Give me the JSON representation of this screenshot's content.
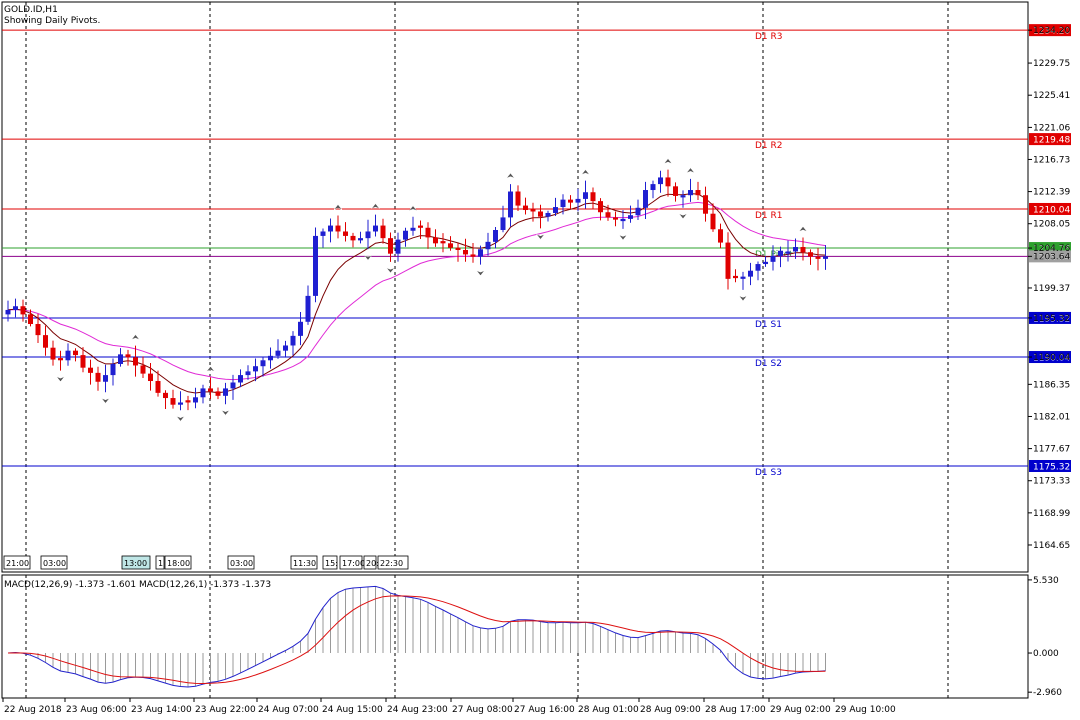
{
  "header": {
    "symbol": "GOLD.ID,H1",
    "subtitle": "Showing Daily Pivots."
  },
  "colors": {
    "bull": "#1f1fd1",
    "bear": "#e00000",
    "ma_fast": "#7a0000",
    "ma_slow": "#e02ad6",
    "macd_hist": "#9a9a9a",
    "macd_line": "#2222cc",
    "macd_signal": "#dd1111",
    "resistance": "#e00000",
    "support": "#0000cc",
    "pivot": "#2ea02e",
    "price_line": "#8b008b"
  },
  "chart_data": [
    {
      "type": "candlestick",
      "title": "GOLD.ID,H1",
      "ylim": [
        1161.0,
        1238.0
      ],
      "y_ticks": [
        "1234.20",
        "1229.75",
        "1225.41",
        "1221.06",
        "1216.73",
        "1212.39",
        "1208.05",
        "1204.76",
        "1203.64",
        "1199.37",
        "1195.32",
        "1190.04",
        "1186.35",
        "1182.01",
        "1177.67",
        "1173.33",
        "1168.99",
        "1164.65"
      ],
      "y_tick_values": [
        1234.2,
        1229.75,
        1225.41,
        1221.06,
        1216.73,
        1212.39,
        1208.05,
        1204.76,
        1203.64,
        1199.37,
        1195.32,
        1190.04,
        1186.35,
        1182.01,
        1177.67,
        1173.33,
        1168.99,
        1164.65
      ],
      "x_labels": [
        "22 Aug 2018",
        "23 Aug 06:00",
        "23 Aug 14:00",
        "23 Aug 22:00",
        "24 Aug 07:00",
        "24 Aug 15:00",
        "24 Aug 23:00",
        "27 Aug 08:00",
        "27 Aug 16:00",
        "28 Aug 01:00",
        "28 Aug 09:00",
        "28 Aug 17:00",
        "29 Aug 02:00",
        "29 Aug 10:00"
      ],
      "session_labels": [
        "21:00",
        "03:00",
        "13:00",
        "1",
        "18:00",
        "03:00",
        "11:30",
        "15:",
        "17:00",
        "20:",
        "22:30"
      ],
      "levels": [
        {
          "name": "D1 R3",
          "value": 1234.2,
          "tag": "1234.20",
          "kind": "resistance"
        },
        {
          "name": "D1 R2",
          "value": 1219.48,
          "tag": "1219.48",
          "kind": "resistance"
        },
        {
          "name": "D1 R1",
          "value": 1210.04,
          "tag": "1210.04",
          "kind": "resistance"
        },
        {
          "name": "D1 Pivot",
          "value": 1204.76,
          "tag": "1204.76",
          "kind": "pivot"
        },
        {
          "name": "D1 S1",
          "value": 1195.32,
          "tag": "1195.32",
          "kind": "support"
        },
        {
          "name": "D1 S2",
          "value": 1190.04,
          "tag": "1190.04",
          "kind": "support"
        },
        {
          "name": "D1 S3",
          "value": 1175.32,
          "tag": "1175.32",
          "kind": "support"
        }
      ],
      "last_price": {
        "value": 1203.64,
        "tag": "1203.64"
      },
      "close": [
        1196.4,
        1196.9,
        1195.8,
        1194.5,
        1193.0,
        1191.3,
        1189.7,
        1189.6,
        1190.9,
        1190.3,
        1188.6,
        1187.9,
        1186.7,
        1187.6,
        1189.1,
        1190.4,
        1190.0,
        1188.9,
        1187.8,
        1186.8,
        1185.2,
        1184.5,
        1183.6,
        1183.9,
        1183.9,
        1184.6,
        1185.8,
        1185.4,
        1184.8,
        1185.8,
        1186.6,
        1187.6,
        1188.1,
        1188.8,
        1189.6,
        1190.2,
        1190.9,
        1191.6,
        1192.9,
        1194.8,
        1198.3,
        1206.4,
        1207.0,
        1207.8,
        1207.0,
        1206.4,
        1205.8,
        1206.1,
        1207.0,
        1207.8,
        1206.1,
        1204.0,
        1205.9,
        1207.1,
        1207.5,
        1207.5,
        1206.2,
        1205.4,
        1205.4,
        1204.8,
        1204.5,
        1203.9,
        1203.6,
        1204.6,
        1205.6,
        1207.2,
        1208.9,
        1212.4,
        1210.5,
        1209.9,
        1209.7,
        1209.0,
        1209.5,
        1210.3,
        1211.3,
        1210.9,
        1211.4,
        1212.3,
        1211.1,
        1209.6,
        1208.9,
        1208.6,
        1208.7,
        1209.2,
        1210.2,
        1212.6,
        1213.4,
        1214.3,
        1213.1,
        1211.8,
        1211.9,
        1212.6,
        1211.9,
        1209.4,
        1207.3,
        1205.5,
        1200.6,
        1200.7,
        1200.9,
        1201.7,
        1202.6,
        1202.9,
        1203.7,
        1204.4,
        1204.3,
        1204.9,
        1204.2,
        1203.6,
        1203.3,
        1203.64
      ],
      "series": [
        {
          "name": "MA fast",
          "kind": "ma_fast"
        },
        {
          "name": "MA slow",
          "kind": "ma_slow"
        }
      ]
    },
    {
      "type": "histogram",
      "title": "MACD(12,26,9) -1.373 -1.601 MACD(12,26,1) -1.373 -1.373",
      "ylim": [
        -3.4,
        5.9
      ],
      "y_ticks": [
        "5.530",
        "0.000",
        "-2.960"
      ],
      "y_tick_values": [
        5.53,
        0.0,
        -2.96
      ]
    }
  ]
}
